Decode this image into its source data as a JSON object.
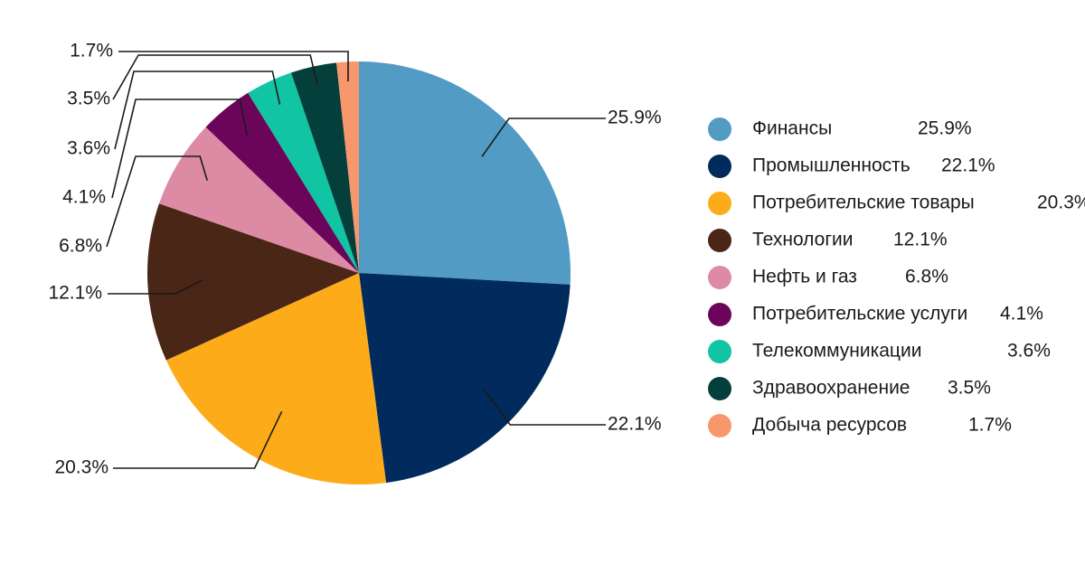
{
  "chart_data": {
    "type": "pie",
    "categories": [
      "Финансы",
      "Промышленность",
      "Потребительские товары",
      "Технологии",
      "Нефть и газ",
      "Потребительские услуги",
      "Телекоммуникации",
      "Здравоохранение",
      "Добыча ресурсов"
    ],
    "values": [
      25.9,
      22.1,
      20.3,
      12.1,
      6.8,
      4.1,
      3.6,
      3.5,
      1.7
    ],
    "labels": [
      "25.9%",
      "22.1%",
      "20.3%",
      "12.1%",
      "6.8%",
      "4.1%",
      "3.6%",
      "3.5%",
      "1.7%"
    ],
    "colors": [
      "#529bc4",
      "#002b5c",
      "#fdab19",
      "#4a2616",
      "#dd8aa4",
      "#6b055a",
      "#10c4a4",
      "#053f3b",
      "#f8976c"
    ],
    "legend_position": "right",
    "start_angle_deg": 0,
    "direction": "clockwise"
  }
}
